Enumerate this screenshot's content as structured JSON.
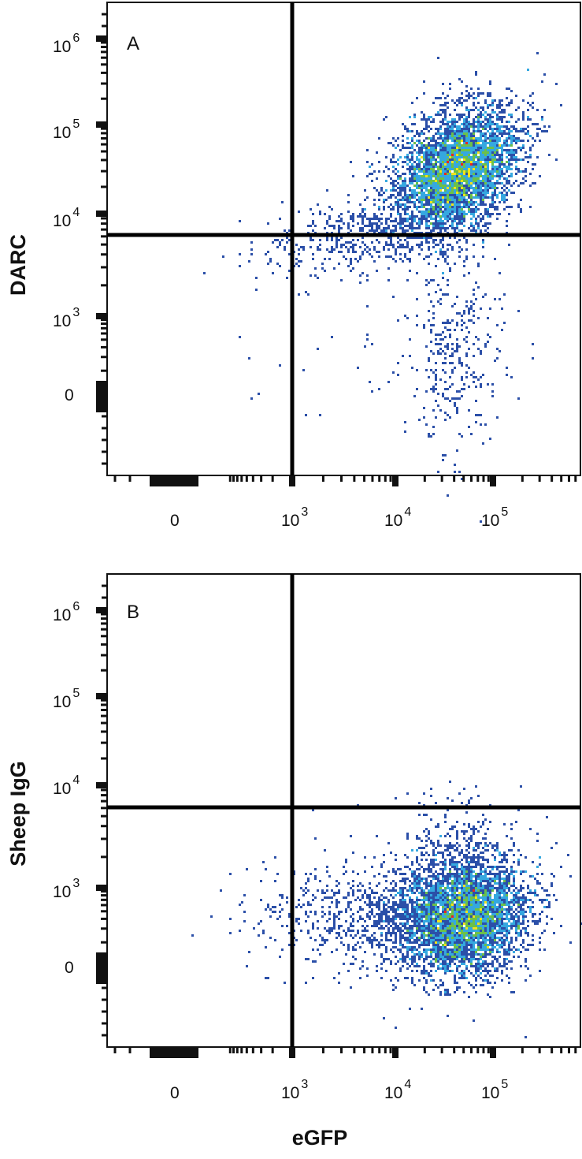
{
  "chart_data": [
    {
      "type": "scatter",
      "subtype": "flow-cytometry-density",
      "panel_label": "A",
      "title": "",
      "xlabel": "eGFP",
      "ylabel": "DARC",
      "x_ticks": [
        "0",
        "10^3",
        "10^4",
        "10^5"
      ],
      "y_ticks": [
        "0",
        "10^3",
        "10^4",
        "10^5",
        "10^6"
      ],
      "x_scale": "biexponential",
      "y_scale": "biexponential",
      "quadrant_gate": {
        "x": 1000,
        "y": 6000
      },
      "populations": [
        {
          "name": "main",
          "x_center": 40000,
          "y_center": 30000,
          "x_range": [
            3000,
            200000
          ],
          "y_range": [
            6000,
            250000
          ],
          "quadrant": "upper-right"
        },
        {
          "name": "tail",
          "x_center": 50000,
          "y_center": 500,
          "x_range": [
            15000,
            150000
          ],
          "y_range": [
            -500,
            6000
          ],
          "quadrant": "lower-right"
        }
      ],
      "density_colors": [
        "#2b4fa8",
        "#35a8e0",
        "#6cc04a",
        "#f2e21b",
        "#e8261f"
      ],
      "grid": false,
      "legend": null
    },
    {
      "type": "scatter",
      "subtype": "flow-cytometry-density",
      "panel_label": "B",
      "title": "",
      "xlabel": "eGFP",
      "ylabel": "Sheep IgG",
      "x_ticks": [
        "0",
        "10^3",
        "10^4",
        "10^5"
      ],
      "y_ticks": [
        "0",
        "10^3",
        "10^4",
        "10^5",
        "10^6"
      ],
      "x_scale": "biexponential",
      "y_scale": "biexponential",
      "quadrant_gate": {
        "x": 1000,
        "y": 6000
      },
      "populations": [
        {
          "name": "main",
          "x_center": 45000,
          "y_center": 500,
          "x_range": [
            1500,
            250000
          ],
          "y_range": [
            -300,
            10000
          ],
          "quadrant": "lower-right"
        }
      ],
      "density_colors": [
        "#2b4fa8",
        "#35a8e0",
        "#6cc04a",
        "#f2e21b",
        "#e8261f"
      ],
      "grid": false,
      "legend": null
    }
  ],
  "panels": [
    {
      "label": "A",
      "ylabel": "DARC",
      "y_ticks": [
        {
          "base": "10",
          "exp": "6"
        },
        {
          "base": "10",
          "exp": "5"
        },
        {
          "base": "10",
          "exp": "4"
        },
        {
          "base": "10",
          "exp": "3"
        },
        {
          "base": "0",
          "exp": ""
        }
      ],
      "x_ticks": [
        {
          "base": "0",
          "exp": ""
        },
        {
          "base": "10",
          "exp": "3"
        },
        {
          "base": "10",
          "exp": "4"
        },
        {
          "base": "10",
          "exp": "5"
        }
      ]
    },
    {
      "label": "B",
      "ylabel": "Sheep IgG",
      "y_ticks": [
        {
          "base": "10",
          "exp": "6"
        },
        {
          "base": "10",
          "exp": "5"
        },
        {
          "base": "10",
          "exp": "4"
        },
        {
          "base": "10",
          "exp": "3"
        },
        {
          "base": "0",
          "exp": ""
        }
      ],
      "x_ticks": [
        {
          "base": "0",
          "exp": ""
        },
        {
          "base": "10",
          "exp": "3"
        },
        {
          "base": "10",
          "exp": "4"
        },
        {
          "base": "10",
          "exp": "5"
        }
      ]
    }
  ],
  "shared_xlabel": "eGFP"
}
